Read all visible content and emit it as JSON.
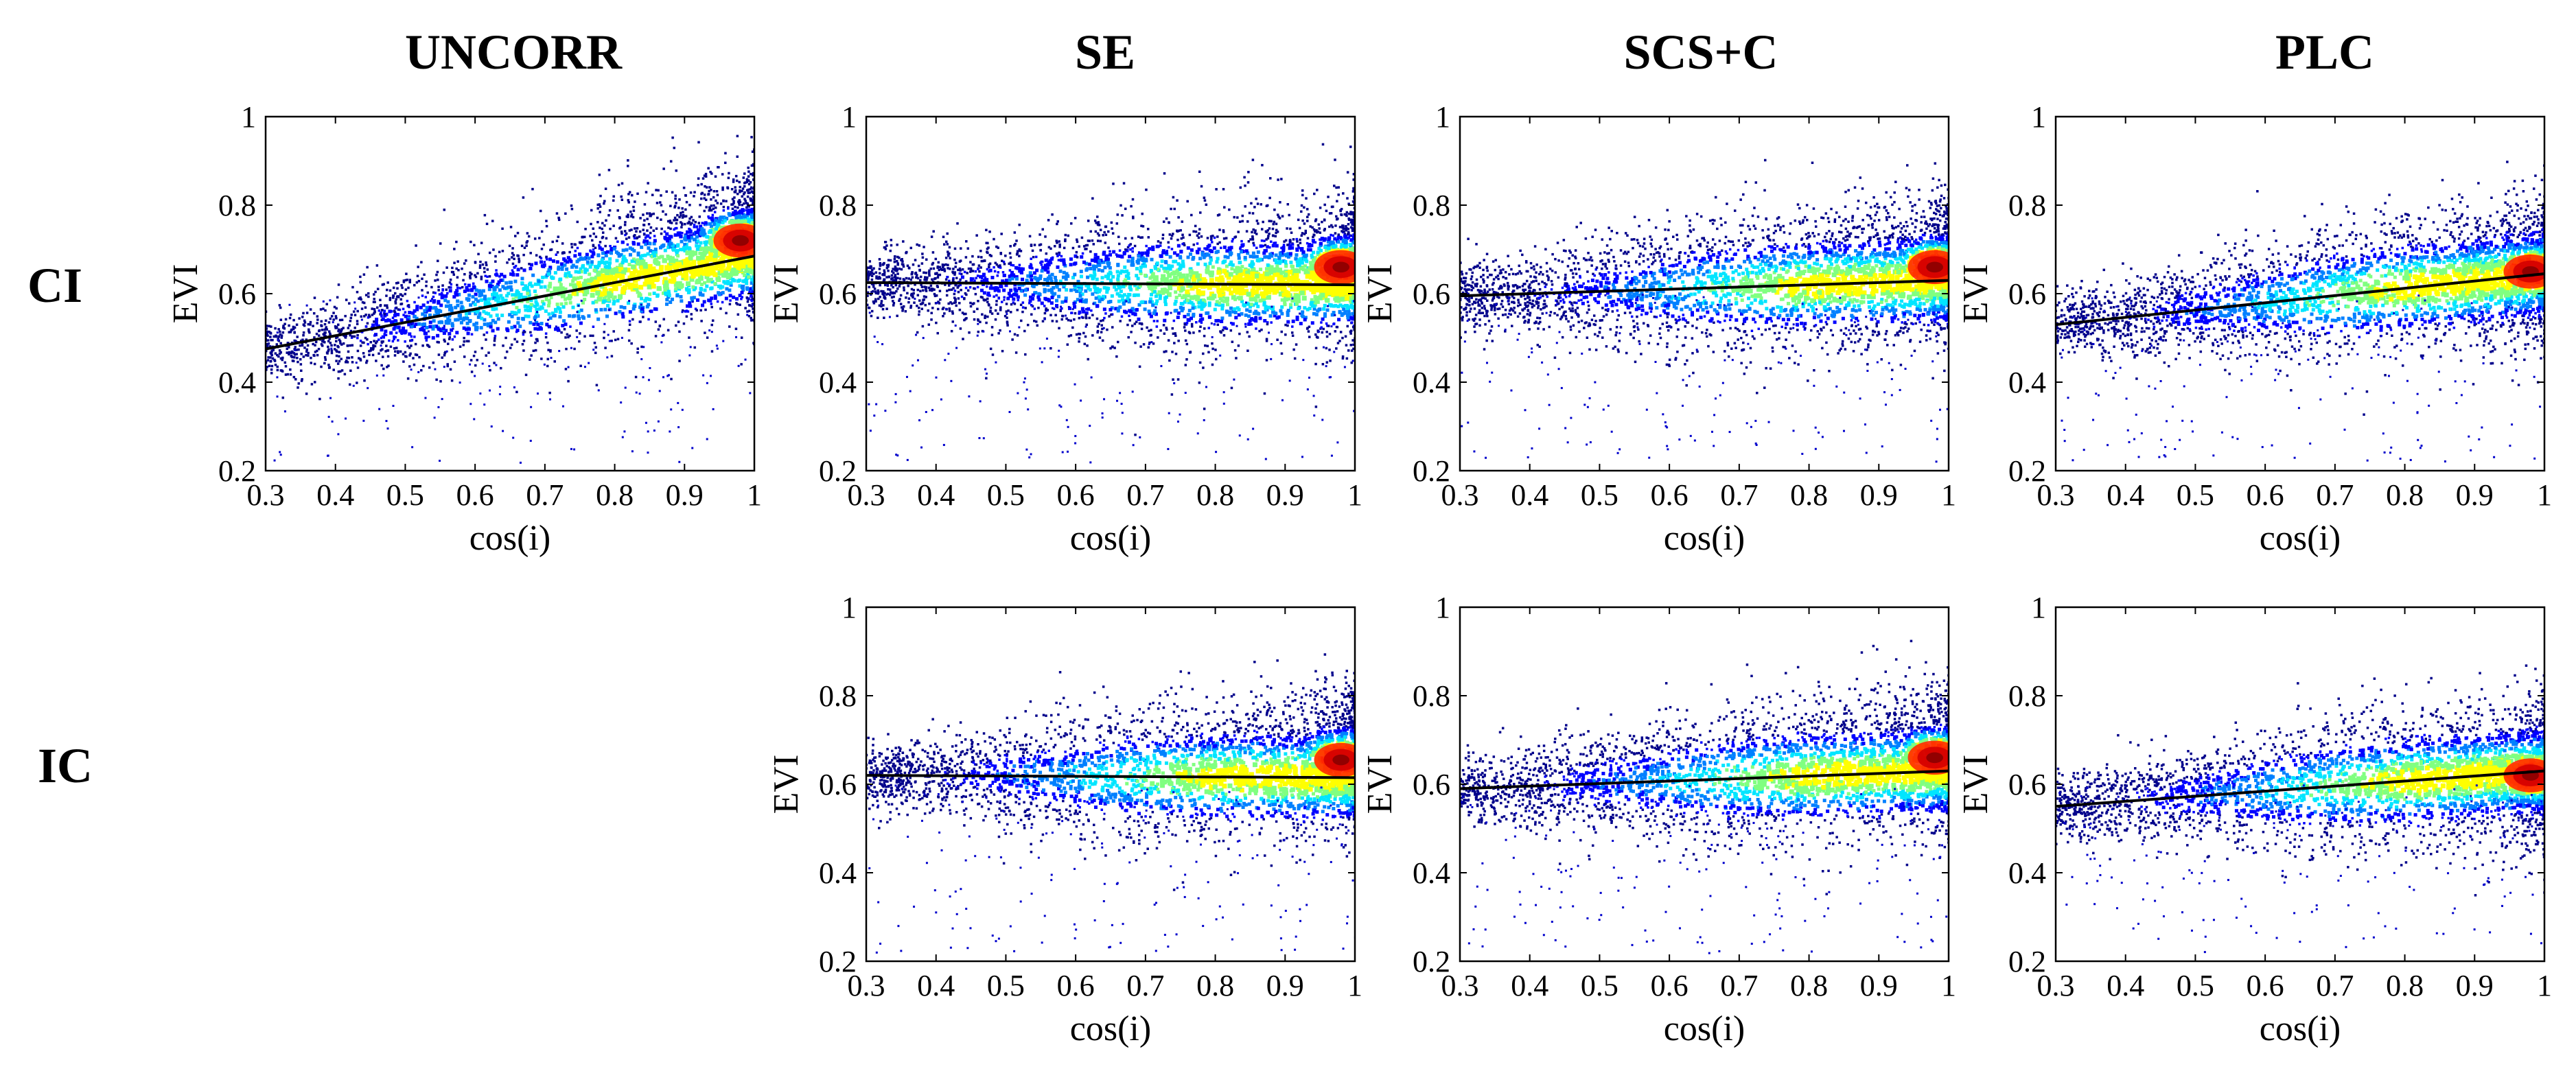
{
  "column_titles": [
    "UNCORR",
    "SE",
    "SCS+C",
    "PLC"
  ],
  "row_labels": [
    "CI",
    "IC"
  ],
  "colormap": [
    "#00008b",
    "#0000ff",
    "#0080ff",
    "#00e5ff",
    "#80ff80",
    "#ffff00",
    "#ff8000",
    "#ff0000",
    "#8b0000"
  ],
  "chart_data": [
    {
      "type": "scatter",
      "panel": "CI-UNCORR",
      "row": "CI",
      "column": "UNCORR",
      "xlabel": "cos(i)",
      "ylabel": "EVI",
      "xlim": [
        0.3,
        1
      ],
      "ylim": [
        0.2,
        1
      ],
      "xticks": [
        "0.3",
        "0.4",
        "0.5",
        "0.6",
        "0.7",
        "0.8",
        "0.9",
        "1"
      ],
      "yticks": [
        "0.2",
        "0.4",
        "0.6",
        "0.8",
        "1"
      ],
      "fit_line": {
        "x": [
          0.3,
          1
        ],
        "y": [
          0.475,
          0.685
        ]
      },
      "density_peak": {
        "x": 0.98,
        "y": 0.72
      }
    },
    {
      "type": "scatter",
      "panel": "CI-SE",
      "row": "CI",
      "column": "SE",
      "xlabel": "cos(i)",
      "ylabel": "EVI",
      "xlim": [
        0.3,
        1
      ],
      "ylim": [
        0.2,
        1
      ],
      "xticks": [
        "0.3",
        "0.4",
        "0.5",
        "0.6",
        "0.7",
        "0.8",
        "0.9",
        "1"
      ],
      "yticks": [
        "0.2",
        "0.4",
        "0.6",
        "0.8",
        "1"
      ],
      "fit_line": {
        "x": [
          0.3,
          1
        ],
        "y": [
          0.625,
          0.62
        ]
      },
      "density_peak": {
        "x": 0.98,
        "y": 0.66
      }
    },
    {
      "type": "scatter",
      "panel": "CI-SCS+C",
      "row": "CI",
      "column": "SCS+C",
      "xlabel": "cos(i)",
      "ylabel": "EVI",
      "xlim": [
        0.3,
        1
      ],
      "ylim": [
        0.2,
        1
      ],
      "xticks": [
        "0.3",
        "0.4",
        "0.5",
        "0.6",
        "0.7",
        "0.8",
        "0.9",
        "1"
      ],
      "yticks": [
        "0.2",
        "0.4",
        "0.6",
        "0.8",
        "1"
      ],
      "fit_line": {
        "x": [
          0.3,
          1
        ],
        "y": [
          0.595,
          0.63
        ]
      },
      "density_peak": {
        "x": 0.98,
        "y": 0.66
      }
    },
    {
      "type": "scatter",
      "panel": "CI-PLC",
      "row": "CI",
      "column": "PLC",
      "xlabel": "cos(i)",
      "ylabel": "EVI",
      "xlim": [
        0.3,
        1
      ],
      "ylim": [
        0.2,
        1
      ],
      "xticks": [
        "0.3",
        "0.4",
        "0.5",
        "0.6",
        "0.7",
        "0.8",
        "0.9",
        "1"
      ],
      "yticks": [
        "0.2",
        "0.4",
        "0.6",
        "0.8",
        "1"
      ],
      "fit_line": {
        "x": [
          0.3,
          1
        ],
        "y": [
          0.53,
          0.645
        ]
      },
      "density_peak": {
        "x": 0.98,
        "y": 0.65
      }
    },
    {
      "type": "scatter",
      "panel": "IC-SE",
      "row": "IC",
      "column": "SE",
      "xlabel": "cos(i)",
      "ylabel": "EVI",
      "xlim": [
        0.3,
        1
      ],
      "ylim": [
        0.2,
        1
      ],
      "xticks": [
        "0.3",
        "0.4",
        "0.5",
        "0.6",
        "0.7",
        "0.8",
        "0.9",
        "1"
      ],
      "yticks": [
        "0.2",
        "0.4",
        "0.6",
        "0.8",
        "1"
      ],
      "fit_line": {
        "x": [
          0.3,
          1
        ],
        "y": [
          0.62,
          0.615
        ]
      },
      "density_peak": {
        "x": 0.98,
        "y": 0.655
      }
    },
    {
      "type": "scatter",
      "panel": "IC-SCS+C",
      "row": "IC",
      "column": "SCS+C",
      "xlabel": "cos(i)",
      "ylabel": "EVI",
      "xlim": [
        0.3,
        1
      ],
      "ylim": [
        0.2,
        1
      ],
      "xticks": [
        "0.3",
        "0.4",
        "0.5",
        "0.6",
        "0.7",
        "0.8",
        "0.9",
        "1"
      ],
      "yticks": [
        "0.2",
        "0.4",
        "0.6",
        "0.8",
        "1"
      ],
      "fit_line": {
        "x": [
          0.3,
          1
        ],
        "y": [
          0.59,
          0.63
        ]
      },
      "density_peak": {
        "x": 0.98,
        "y": 0.66
      }
    },
    {
      "type": "scatter",
      "panel": "IC-PLC",
      "row": "IC",
      "column": "PLC",
      "xlabel": "cos(i)",
      "ylabel": "EVI",
      "xlim": [
        0.3,
        1
      ],
      "ylim": [
        0.2,
        1
      ],
      "xticks": [
        "0.3",
        "0.4",
        "0.5",
        "0.6",
        "0.7",
        "0.8",
        "0.9",
        "1"
      ],
      "yticks": [
        "0.2",
        "0.4",
        "0.6",
        "0.8",
        "1"
      ],
      "fit_line": {
        "x": [
          0.3,
          1
        ],
        "y": [
          0.55,
          0.63
        ]
      },
      "density_peak": {
        "x": 0.98,
        "y": 0.62
      }
    }
  ]
}
